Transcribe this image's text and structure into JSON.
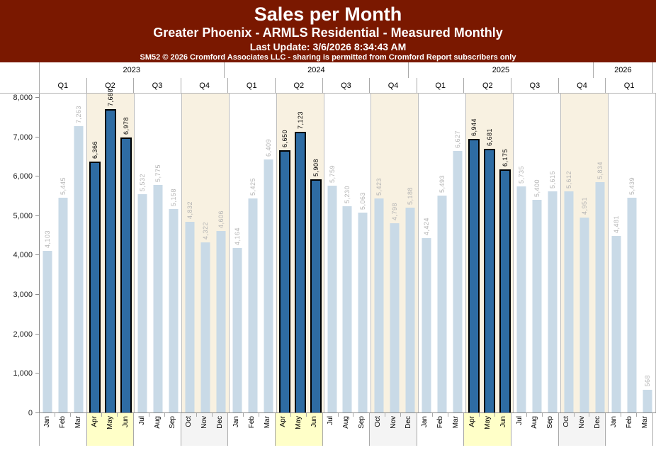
{
  "header": {
    "title": "Sales per Month",
    "subtitle": "Greater Phoenix - ARMLS Residential - Measured Monthly",
    "last_update": "Last Update: 3/6/2026 8:34:43 AM",
    "copyright": "SM52 © 2026 Cromford Associates LLC - sharing is permitted from Cromford Report subscribers only"
  },
  "colors": {
    "header_bg": "#7A1800",
    "header_text": "#FFFFFF",
    "bar": "#C9DAE7",
    "bar_highlight": "#2E6CA3",
    "bar_highlight_border": "#000000",
    "value_label": "#B4B4B4",
    "value_label_highlight": "#000000",
    "plot_band_cream": "#F8F1E1",
    "plot_band_white": "#FFFFFF",
    "month_band_q2": "#FFFFC8",
    "month_band_q4": "#F4F4F4",
    "month_band_default": "#FFFFFF"
  },
  "chart_data": {
    "type": "bar",
    "title": "Sales per Month",
    "xlabel": "",
    "ylabel": "",
    "ylim": [
      0,
      8000
    ],
    "ytick_step": 1000,
    "ytick_labels": [
      "0",
      "1,000",
      "2,000",
      "3,000",
      "4,000",
      "5,000",
      "6,000",
      "7,000",
      "8,000"
    ],
    "grid": false,
    "legend": "none",
    "years": [
      {
        "year": "2023",
        "quarters": [
          {
            "label": "Q1",
            "band": "white",
            "months": [
              {
                "m": "Jan",
                "v": 4103,
                "hl": false
              },
              {
                "m": "Feb",
                "v": 5445,
                "hl": false
              },
              {
                "m": "Mar",
                "v": 7263,
                "hl": false
              }
            ]
          },
          {
            "label": "Q2",
            "band": "cream",
            "months": [
              {
                "m": "Apr",
                "v": 6366,
                "hl": true
              },
              {
                "m": "May",
                "v": 7688,
                "hl": true
              },
              {
                "m": "Jun",
                "v": 6978,
                "hl": true
              }
            ]
          },
          {
            "label": "Q3",
            "band": "white",
            "months": [
              {
                "m": "Jul",
                "v": 5532,
                "hl": false
              },
              {
                "m": "Aug",
                "v": 5775,
                "hl": false
              },
              {
                "m": "Sep",
                "v": 5158,
                "hl": false
              }
            ]
          },
          {
            "label": "Q4",
            "band": "cream",
            "months": [
              {
                "m": "Oct",
                "v": 4832,
                "hl": false
              },
              {
                "m": "Nov",
                "v": 4322,
                "hl": false
              },
              {
                "m": "Dec",
                "v": 4606,
                "hl": false
              }
            ]
          }
        ]
      },
      {
        "year": "2024",
        "quarters": [
          {
            "label": "Q1",
            "band": "white",
            "months": [
              {
                "m": "Jan",
                "v": 4164,
                "hl": false
              },
              {
                "m": "Feb",
                "v": 5425,
                "hl": false
              },
              {
                "m": "Mar",
                "v": 6409,
                "hl": false
              }
            ]
          },
          {
            "label": "Q2",
            "band": "cream",
            "months": [
              {
                "m": "Apr",
                "v": 6650,
                "hl": true
              },
              {
                "m": "May",
                "v": 7123,
                "hl": true
              },
              {
                "m": "Jun",
                "v": 5908,
                "hl": true
              }
            ]
          },
          {
            "label": "Q3",
            "band": "white",
            "months": [
              {
                "m": "Jul",
                "v": 5759,
                "hl": false
              },
              {
                "m": "Aug",
                "v": 5230,
                "hl": false
              },
              {
                "m": "Sep",
                "v": 5063,
                "hl": false
              }
            ]
          },
          {
            "label": "Q4",
            "band": "cream",
            "months": [
              {
                "m": "Oct",
                "v": 5423,
                "hl": false
              },
              {
                "m": "Nov",
                "v": 4798,
                "hl": false
              },
              {
                "m": "Dec",
                "v": 5188,
                "hl": false
              }
            ]
          }
        ]
      },
      {
        "year": "2025",
        "quarters": [
          {
            "label": "Q1",
            "band": "white",
            "months": [
              {
                "m": "Jan",
                "v": 4424,
                "hl": false
              },
              {
                "m": "Feb",
                "v": 5493,
                "hl": false
              },
              {
                "m": "Mar",
                "v": 6627,
                "hl": false
              }
            ]
          },
          {
            "label": "Q2",
            "band": "cream",
            "months": [
              {
                "m": "Apr",
                "v": 6944,
                "hl": true
              },
              {
                "m": "May",
                "v": 6681,
                "hl": true
              },
              {
                "m": "Jun",
                "v": 6175,
                "hl": true
              }
            ]
          },
          {
            "label": "Q3",
            "band": "white",
            "months": [
              {
                "m": "Jul",
                "v": 5735,
                "hl": false
              },
              {
                "m": "Aug",
                "v": 5400,
                "hl": false
              },
              {
                "m": "Sep",
                "v": 5615,
                "hl": false
              }
            ]
          },
          {
            "label": "Q4",
            "band": "cream",
            "months": [
              {
                "m": "Oct",
                "v": 5612,
                "hl": false
              },
              {
                "m": "Nov",
                "v": 4951,
                "hl": false
              },
              {
                "m": "Dec",
                "v": 5834,
                "hl": false
              }
            ]
          }
        ]
      },
      {
        "year": "2026",
        "quarters": [
          {
            "label": "Q1",
            "band": "white",
            "months": [
              {
                "m": "Jan",
                "v": 4481,
                "hl": false
              },
              {
                "m": "Feb",
                "v": 5439,
                "hl": false
              },
              {
                "m": "Mar",
                "v": 568,
                "hl": false
              }
            ]
          }
        ]
      }
    ]
  }
}
